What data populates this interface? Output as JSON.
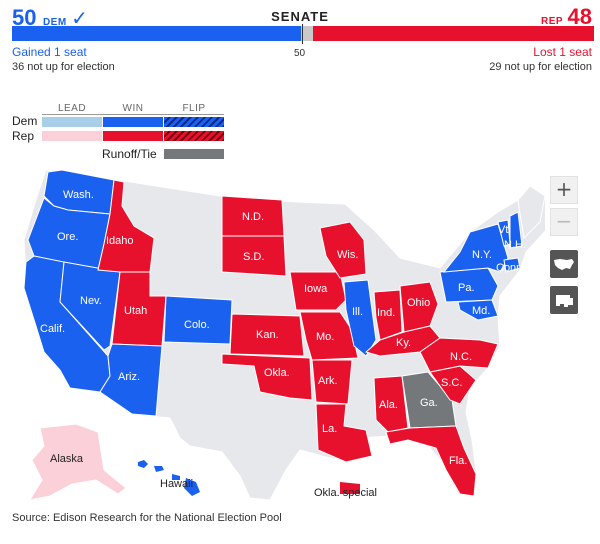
{
  "colors": {
    "dem_win": "#1a61f0",
    "rep_win": "#e8112d",
    "dem_lead": "#a9cfe8",
    "rep_lead": "#fbd0d8",
    "runoff": "#75787b",
    "no_election": "#e6e8ec"
  },
  "header": {
    "title": "SENATE",
    "dem": {
      "seats": "50",
      "party": "DEM",
      "check": "✓",
      "change": "Gained 1 seat",
      "not_up": "36 not up for election"
    },
    "rep": {
      "seats": "48",
      "party": "REP",
      "change": "Lost 1 seat",
      "not_up": "29 not up for election"
    },
    "majority_label": "50"
  },
  "seats_bar": {
    "dem": 50,
    "runoff": 2,
    "rep": 48,
    "total": 100
  },
  "legend": {
    "columns": [
      "LEAD",
      "WIN",
      "FLIP"
    ],
    "rows": [
      "Dem",
      "Rep"
    ],
    "runoff_label": "Runoff/Tie"
  },
  "map_controls": {
    "zoom_in": "+",
    "zoom_out": "−",
    "us_view_icon": "us-map-icon",
    "state_view_icon": "state-shape-icon"
  },
  "states": {
    "wa": "Wash.",
    "or": "Ore.",
    "ca": "Calif.",
    "nv": "Nev.",
    "id": "Idaho",
    "ut": "Utah",
    "az": "Ariz.",
    "co": "Colo.",
    "nd": "N.D.",
    "sd": "S.D.",
    "ks": "Kan.",
    "ok": "Okla.",
    "ia": "Iowa",
    "mo": "Mo.",
    "ar": "Ark.",
    "la": "La.",
    "wi": "Wis.",
    "il": "Ill.",
    "in": "Ind.",
    "oh": "Ohio",
    "ky": "Ky.",
    "al": "Ala.",
    "ga": "Ga.",
    "fl": "Fla.",
    "nc": "N.C.",
    "sc": "S.C.",
    "pa": "Pa.",
    "md": "Md.",
    "ny": "N.Y.",
    "vt": "Vt.",
    "nh": "N.H.",
    "ct": "Conn.",
    "ak": "Alaska",
    "hi": "Hawaii",
    "ok_special": "Okla. special"
  },
  "source": "Source: Edison Research for the National Election Pool"
}
